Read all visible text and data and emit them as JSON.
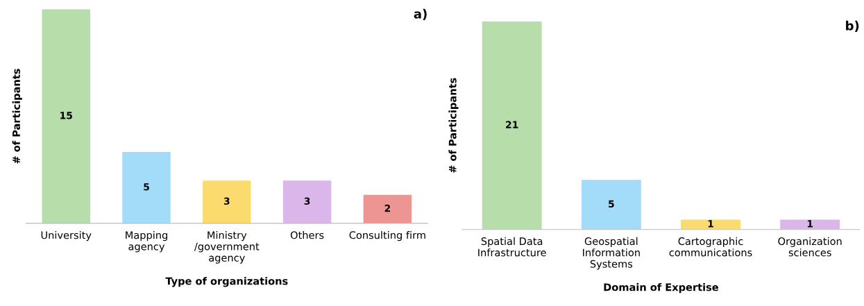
{
  "chart_data": [
    {
      "type": "bar",
      "title": "a)",
      "xlabel": "Type of organizations",
      "ylabel": "# of Participants",
      "categories": [
        "University",
        "Mapping\nagency",
        "Ministry\n/government\nagency",
        "Others",
        "Consulting firm"
      ],
      "values": [
        15,
        5,
        3,
        3,
        2
      ],
      "colors": [
        "#b6ddaa",
        "#a2dcf8",
        "#fcdb6e",
        "#dbb6ea",
        "#ed9593"
      ],
      "data_labels": true
    },
    {
      "type": "bar",
      "title": "b)",
      "xlabel": "Domain of Expertise",
      "ylabel": "# of Participants",
      "categories": [
        "Spatial Data\nInfrastructure",
        "Geospatial\nInformation\nSystems",
        "Cartographic\ncommunications",
        "Organization\nsciences"
      ],
      "values": [
        21,
        5,
        1,
        1
      ],
      "colors": [
        "#b6ddaa",
        "#a2dcf8",
        "#fcdb6e",
        "#dbb6ea"
      ],
      "data_labels": true
    }
  ]
}
